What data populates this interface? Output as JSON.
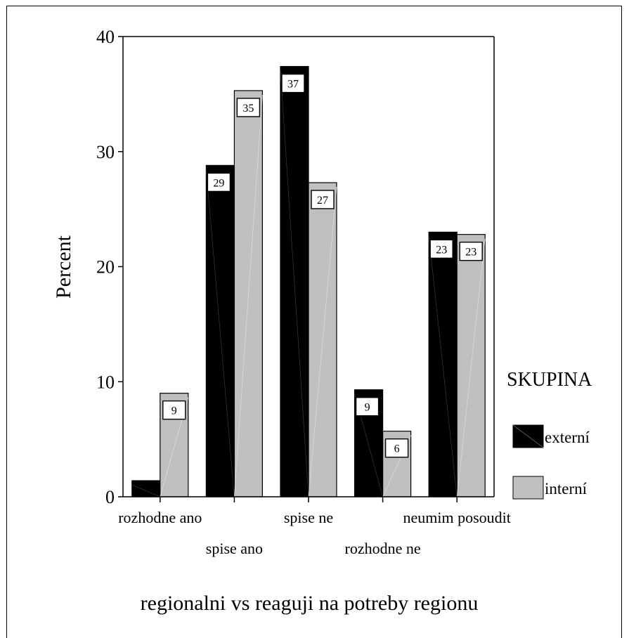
{
  "chart_data": {
    "type": "bar",
    "title": "",
    "xlabel": "regionalni vs reaguji na potreby regionu",
    "ylabel": "Percent",
    "ylim": [
      0,
      40
    ],
    "yticks": [
      "0",
      "10",
      "20",
      "30",
      "40"
    ],
    "categories": [
      "rozhodne ano",
      "spise ano",
      "spise ne",
      "rozhodne ne",
      "neumim posoudit"
    ],
    "series": [
      {
        "name": "externí",
        "color": "#000000",
        "values": [
          1.4,
          28.8,
          37.4,
          9.3,
          23.0
        ],
        "labels": [
          "",
          "29",
          "37",
          "9",
          "23"
        ]
      },
      {
        "name": "interní",
        "color": "#bfbfbf",
        "values": [
          9.0,
          35.3,
          27.3,
          5.7,
          22.8
        ],
        "labels": [
          "9",
          "35",
          "27",
          "6",
          "23"
        ]
      }
    ],
    "legend": {
      "title": "SKUPINA",
      "placement": "right"
    },
    "grid": false
  }
}
